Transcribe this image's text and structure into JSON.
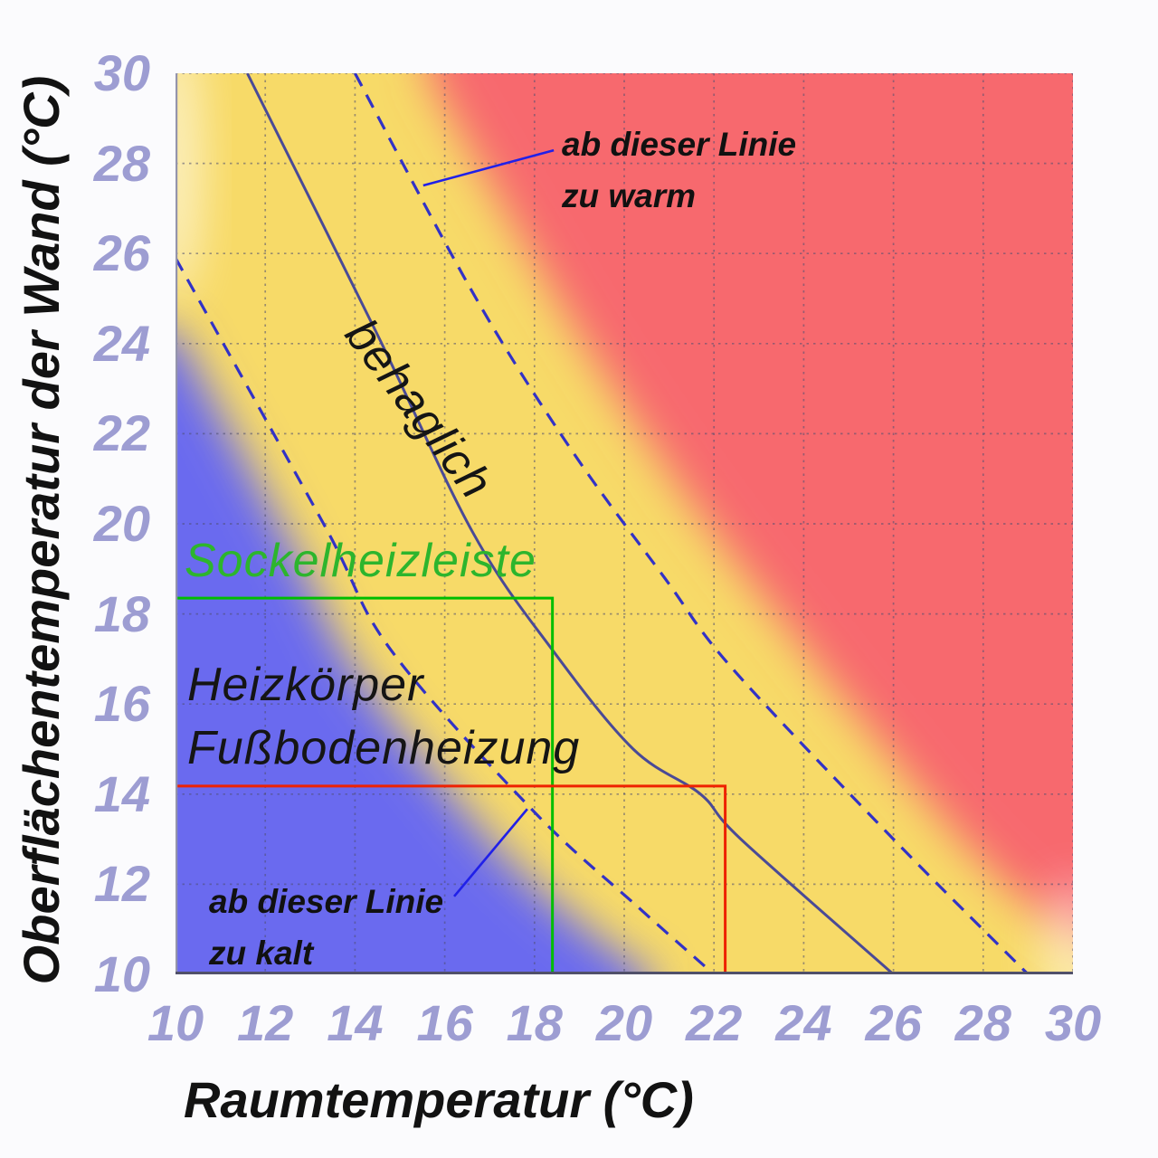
{
  "chart_data": {
    "type": "area",
    "title": "",
    "xlabel": "Raumtemperatur (°C)",
    "ylabel": "Oberflächentemperatur der Wand (°C)",
    "xlim": [
      10,
      30
    ],
    "ylim": [
      10,
      30
    ],
    "x_ticks": [
      10,
      12,
      14,
      16,
      18,
      20,
      22,
      24,
      26,
      28,
      30
    ],
    "y_ticks": [
      10,
      12,
      14,
      16,
      18,
      20,
      22,
      24,
      26,
      28,
      30
    ],
    "grid": true,
    "colors": {
      "tick_label": "#9d9dd2",
      "grid_line": "#4e4e70",
      "axis_line": "#50506a",
      "dashed_boundary": "#3232c6",
      "comfort_center_line": "#4a4a96",
      "callout_line": "#2020e8"
    },
    "zones": [
      {
        "name": "zu kalt",
        "position": "bottom-left",
        "color": "#6a6aef",
        "boundary": [
          [
            10,
            24.3
          ],
          [
            12.6,
            19.5
          ],
          [
            14,
            16.8
          ],
          [
            17,
            13
          ],
          [
            19.3,
            10.9
          ],
          [
            20.6,
            10
          ]
        ]
      },
      {
        "name": "behaglich",
        "position": "middle-band",
        "color": "#f7da68"
      },
      {
        "name": "zu warm",
        "position": "top-right",
        "color": "#f7696e",
        "boundary": [
          [
            15.6,
            30
          ],
          [
            18.5,
            25
          ],
          [
            20.7,
            21.6
          ],
          [
            23,
            18.5
          ],
          [
            27.5,
            13
          ],
          [
            30,
            10.8
          ]
        ]
      }
    ],
    "curves": [
      {
        "name": "comfort-center",
        "style": "solid",
        "color": "#4a4a96",
        "width": 3,
        "points": [
          [
            11.6,
            30
          ],
          [
            14.45,
            24.3
          ],
          [
            16.63,
            19.8
          ],
          [
            18.4,
            17.2
          ],
          [
            20.2,
            15
          ],
          [
            21.7,
            14
          ],
          [
            22.6,
            13
          ],
          [
            26,
            10
          ]
        ]
      },
      {
        "name": "too-warm-boundary",
        "style": "dashed",
        "color": "#3232c6",
        "width": 3.2,
        "points": [
          [
            14,
            30
          ],
          [
            16.7,
            25
          ],
          [
            18.85,
            21.6
          ],
          [
            20.9,
            18.8
          ],
          [
            22.4,
            16.8
          ],
          [
            26,
            13
          ],
          [
            29,
            10
          ]
        ]
      },
      {
        "name": "too-cold-boundary",
        "style": "dashed",
        "color": "#3232c6",
        "width": 3.2,
        "points": [
          [
            10,
            25.9
          ],
          [
            13.3,
            20
          ],
          [
            14.8,
            17.2
          ],
          [
            18,
            13.6
          ],
          [
            20.3,
            11.5
          ],
          [
            22,
            10
          ]
        ]
      }
    ],
    "boxes": [
      {
        "label": "Sockelheizleiste",
        "color": "#00be00",
        "room_temp_max": 18.4,
        "wall_temp_max": 18.35
      },
      {
        "label": "Heizkörper / Fußbodenheizung",
        "color": "#ee2200",
        "room_temp_max": 22.25,
        "wall_temp_max": 14.18
      }
    ],
    "annotations": {
      "behaglich": {
        "text": "behaglich",
        "rotation_deg": 53
      },
      "sockelheizleiste": {
        "text": "Sockelheizleiste",
        "color": "#2db52d"
      },
      "heizkoerper": {
        "text": "Heizkörper"
      },
      "fussbodenheizung": {
        "text": "Fußbodenheizung"
      },
      "too_warm_note": {
        "line1": "ab dieser Linie",
        "line2": "zu warm",
        "callout": [
          [
            18.43,
            28.29
          ],
          [
            15.52,
            27.51
          ]
        ]
      },
      "too_cold_note": {
        "line1": "ab dieser Linie",
        "line2": "zu kalt",
        "callout": [
          [
            16.21,
            11.73
          ],
          [
            17.84,
            13.67
          ]
        ]
      }
    }
  }
}
